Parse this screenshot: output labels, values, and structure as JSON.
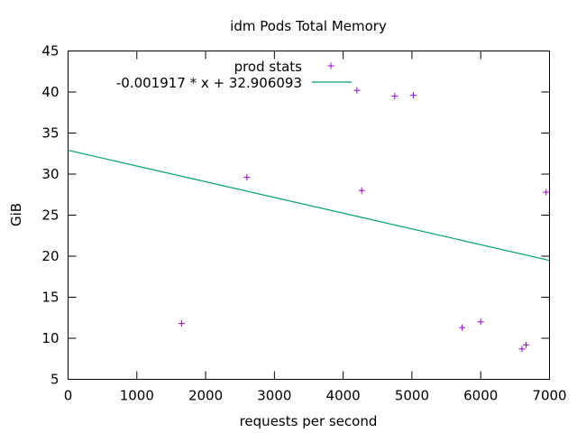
{
  "chart_data": {
    "type": "scatter",
    "title": "idm Pods Total Memory",
    "xlabel": "requests per second",
    "ylabel": "GiB",
    "xlim": [
      0,
      7000
    ],
    "ylim": [
      5,
      45
    ],
    "xticks": [
      0,
      1000,
      2000,
      3000,
      4000,
      5000,
      6000,
      7000
    ],
    "yticks": [
      5,
      10,
      15,
      20,
      25,
      30,
      35,
      40,
      45
    ],
    "grid": false,
    "legend_position": "top",
    "series": [
      {
        "name": "prod stats",
        "type": "scatter",
        "marker": "+",
        "color": "#9400d3",
        "points": [
          {
            "x": 1650,
            "y": 11.8
          },
          {
            "x": 2600,
            "y": 29.6
          },
          {
            "x": 4200,
            "y": 40.2
          },
          {
            "x": 4270,
            "y": 28.0
          },
          {
            "x": 4750,
            "y": 39.5
          },
          {
            "x": 5020,
            "y": 39.6
          },
          {
            "x": 5730,
            "y": 11.3
          },
          {
            "x": 6000,
            "y": 12.0
          },
          {
            "x": 6600,
            "y": 8.7
          },
          {
            "x": 6660,
            "y": 9.2
          },
          {
            "x": 6950,
            "y": 27.8
          }
        ]
      },
      {
        "name": "-0.001917 * x + 32.906093",
        "type": "line",
        "color": "#009e73",
        "slope": -0.001917,
        "intercept": 32.906093
      }
    ]
  }
}
